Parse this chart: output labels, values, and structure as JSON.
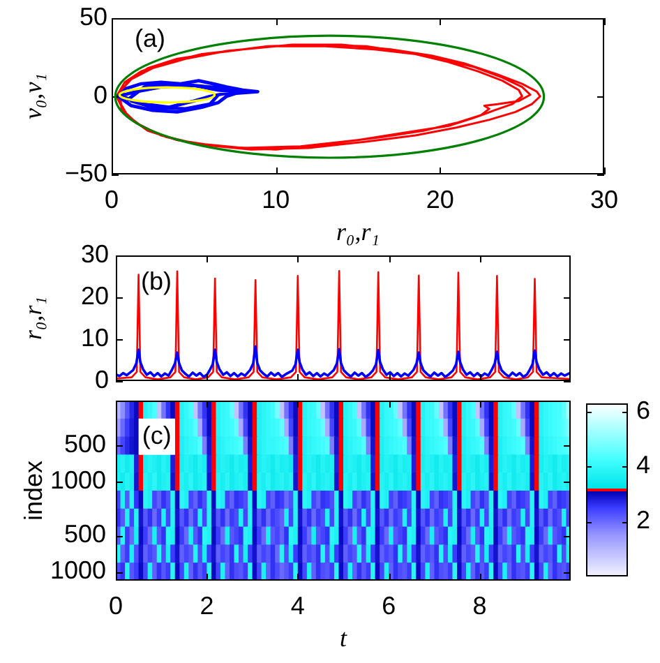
{
  "chart_data": [
    {
      "type": "line",
      "xlabel": "r₀,r₁",
      "ylabel": "v₀,v₁",
      "annotations": [
        "(a)"
      ],
      "xlim": [
        0,
        30
      ],
      "xticks": [
        0,
        10,
        20,
        30
      ],
      "ylim": [
        -50,
        50
      ],
      "yticks": [
        {
          "value": -50,
          "label": "−50"
        },
        0,
        50
      ],
      "series": [
        {
          "color": "#ff0000",
          "x": [
            0.3,
            0.8,
            1.8,
            3.5,
            5.5,
            8,
            11,
            14,
            17,
            19.5,
            21.5,
            23.5,
            25,
            25.9,
            26.1,
            25.6,
            24.6,
            23,
            21,
            18.5,
            15.5,
            12,
            8.5,
            5.5,
            3.3,
            1.8,
            0.8,
            0.3,
            0.5,
            1.2,
            2.5,
            4.5,
            7,
            10,
            13,
            16,
            18.5,
            20.5,
            22.3,
            23.8,
            24.8,
            25,
            24.4,
            23.3,
            22.8,
            22,
            20.5,
            18,
            15,
            11.5,
            8,
            5,
            3,
            1.5,
            0.6,
            0.5,
            0.4,
            1,
            2.2,
            4,
            6.5,
            9.5,
            12.5,
            15.5,
            18,
            20,
            22,
            23.8,
            25,
            25.5,
            24.8,
            23.5,
            22.7,
            23,
            22.5,
            21,
            19,
            16.5,
            13.5,
            10,
            6.5,
            4,
            2.2,
            1,
            0.4
          ],
          "values": [
            0,
            9,
            16,
            22,
            27,
            30,
            33,
            33,
            30,
            26,
            21,
            14,
            8,
            3,
            0,
            -5,
            -10,
            -15,
            -20,
            -25,
            -29,
            -33,
            -34,
            -31,
            -26,
            -19,
            -11,
            0,
            3,
            11,
            18,
            24,
            29,
            32,
            32,
            30,
            27,
            22,
            16,
            10,
            4,
            0,
            -5,
            -9,
            -11,
            -14,
            -19,
            -23,
            -28,
            -32,
            -33,
            -30,
            -25,
            -17,
            -8,
            3,
            -2,
            10,
            18,
            24,
            28,
            32,
            33,
            32,
            28,
            24,
            19,
            12,
            6,
            1,
            -3,
            -5,
            -6,
            -8,
            -12,
            -17,
            -22,
            -26,
            -30,
            -34,
            -32,
            -28,
            -22,
            -13,
            -2
          ]
        },
        {
          "color": "#0000ff",
          "x": [
            0.4,
            0.9,
            1.8,
            3,
            4.2,
            5.3,
            6.2,
            7,
            8,
            8.9,
            7.6,
            7,
            6.5,
            5.5,
            4,
            2.5,
            1.2,
            0.4,
            1.5,
            3,
            5,
            6.5,
            7.5,
            6,
            5,
            3.5,
            2,
            1,
            2,
            4,
            6,
            8,
            6.5,
            6,
            4.5,
            2.5,
            1.2,
            0.6
          ],
          "values": [
            0,
            5,
            8,
            9,
            8,
            10,
            8,
            6,
            4,
            3,
            2,
            0,
            -4,
            -7,
            -10,
            -9,
            -6,
            0,
            3,
            6,
            7,
            4,
            3,
            0,
            -3,
            -7,
            -5,
            -2,
            6,
            8,
            6,
            4,
            1,
            -5,
            -8,
            -7,
            -3,
            1
          ]
        }
      ]
    },
    {
      "type": "line",
      "ylabel": "r₀,r₁",
      "annotations": [
        "(b)"
      ],
      "xlim": [
        0,
        10
      ],
      "xticks": [
        0,
        2,
        4,
        6,
        8
      ],
      "ylim": [
        0,
        30
      ],
      "yticks": [
        0,
        10,
        20,
        30
      ],
      "tick_labels": "y",
      "series": [
        {
          "color": "#ff0000",
          "x": [
            0,
            0.35,
            0.46,
            0.5,
            0.54,
            0.65,
            0.92,
            1.2,
            1.31,
            1.35,
            1.39,
            1.5,
            1.76,
            2.03,
            2.14,
            2.18,
            2.22,
            2.33,
            2.62,
            2.92,
            3.03,
            3.07,
            3.11,
            3.22,
            3.53,
            3.85,
            3.96,
            4,
            4.04,
            4.15,
            4.45,
            4.76,
            4.87,
            4.91,
            4.95,
            5.06,
            5.34,
            5.62,
            5.73,
            5.77,
            5.81,
            5.92,
            6.21,
            6.51,
            6.62,
            6.66,
            6.7,
            6.81,
            7.1,
            7.38,
            7.49,
            7.53,
            7.57,
            7.68,
            7.95,
            8.23,
            8.34,
            8.38,
            8.42,
            8.53,
            8.8,
            9.06,
            9.17,
            9.21,
            9.25,
            9.36,
            9.98
          ],
          "values": [
            0.6,
            0.9,
            2.2,
            25.4,
            2.2,
            0.9,
            0.4,
            0.9,
            2.2,
            26.2,
            2.2,
            0.9,
            0.4,
            0.9,
            2.2,
            24.5,
            2.2,
            0.9,
            0.4,
            0.9,
            2.2,
            24.1,
            2.2,
            0.9,
            0.4,
            0.9,
            2.2,
            25.1,
            2.2,
            0.9,
            0.4,
            0.9,
            2.2,
            26.3,
            2.2,
            0.9,
            0.4,
            0.9,
            2.2,
            26,
            2.2,
            0.9,
            0.4,
            0.9,
            2.2,
            25.2,
            2.2,
            0.9,
            0.4,
            0.9,
            2.2,
            25.9,
            2.2,
            0.9,
            0.4,
            0.9,
            2.2,
            25.1,
            2.2,
            0.9,
            0.4,
            0.9,
            2.2,
            24.4,
            2.2,
            0.9,
            0.5
          ]
        },
        {
          "color": "#0000ff",
          "x": [
            0,
            0.08,
            0.16,
            0.24,
            0.38,
            0.45,
            0.5,
            0.54,
            0.6,
            0.68,
            0.76,
            0.84,
            0.92,
            1,
            1.08,
            1.16,
            1.23,
            1.3,
            1.35,
            1.39,
            1.45,
            1.53,
            1.61,
            1.69,
            1.77,
            1.85,
            1.93,
            2.01,
            2.06,
            2.13,
            2.18,
            2.22,
            2.28,
            2.36,
            2.44,
            2.52,
            2.6,
            2.68,
            2.76,
            2.84,
            2.95,
            3.02,
            3.07,
            3.11,
            3.17,
            3.25,
            3.33,
            3.41,
            3.49,
            3.57,
            3.65,
            3.73,
            3.88,
            3.95,
            4,
            4.04,
            4.1,
            4.18,
            4.26,
            4.34,
            4.42,
            4.5,
            4.58,
            4.66,
            4.79,
            4.86,
            4.91,
            4.95,
            5.01,
            5.09,
            5.17,
            5.25,
            5.33,
            5.41,
            5.49,
            5.57,
            5.65,
            5.72,
            5.77,
            5.81,
            5.87,
            5.95,
            6.03,
            6.11,
            6.19,
            6.27,
            6.35,
            6.43,
            6.54,
            6.61,
            6.66,
            6.7,
            6.76,
            6.84,
            6.92,
            7,
            7.08,
            7.16,
            7.24,
            7.32,
            7.41,
            7.48,
            7.53,
            7.57,
            7.63,
            7.71,
            7.79,
            7.87,
            7.95,
            8.03,
            8.11,
            8.19,
            8.26,
            8.33,
            8.38,
            8.42,
            8.48,
            8.56,
            8.64,
            8.72,
            8.8,
            8.88,
            8.96,
            9.04,
            9.09,
            9.16,
            9.21,
            9.25,
            9.31,
            9.39,
            9.47,
            9.55,
            9.63,
            9.71,
            9.79,
            9.87,
            9.98
          ],
          "values": [
            1.6,
            1.2,
            1.9,
            1.4,
            2.6,
            4.2,
            7.5,
            4.5,
            2.8,
            1.5,
            2.1,
            1.2,
            1.9,
            1.1,
            1.8,
            1.3,
            2.6,
            4.2,
            6.8,
            4.3,
            2.6,
            1.7,
            1.1,
            2,
            1.3,
            1.9,
            1,
            1.6,
            2.5,
            4,
            7.5,
            4.5,
            2.8,
            1.5,
            2.1,
            1.2,
            1.9,
            1.1,
            1.8,
            1.3,
            2.6,
            4.2,
            8.3,
            4.3,
            2.6,
            1.7,
            1.1,
            2,
            1.3,
            1.9,
            1,
            1.6,
            2.5,
            4,
            7.5,
            4.5,
            2.8,
            1.5,
            2.1,
            1.2,
            1.9,
            1.1,
            1.8,
            1.3,
            2.6,
            4.2,
            7.6,
            4.3,
            2.6,
            1.7,
            1.1,
            2,
            1.3,
            1.9,
            1,
            1.6,
            2.5,
            4,
            7.4,
            4.5,
            2.8,
            1.5,
            2.1,
            1.2,
            1.9,
            1.1,
            1.8,
            1.3,
            2.6,
            4.2,
            6.8,
            4.3,
            2.6,
            1.7,
            1.1,
            2,
            1.3,
            1.9,
            1,
            1.6,
            2.5,
            4,
            7,
            4.5,
            2.8,
            1.5,
            2.1,
            1.2,
            1.9,
            1.1,
            1.8,
            1.3,
            2.6,
            4.2,
            7,
            4.3,
            2.6,
            1.7,
            1.1,
            2,
            1.3,
            1.9,
            1,
            1.6,
            2.5,
            4,
            7.3,
            4.5,
            2.8,
            1.5,
            2.1,
            1.2,
            1.9,
            1.1,
            1.8,
            1.3,
            1.9
          ]
        }
      ]
    },
    {
      "type": "heatmap",
      "xlabel": "t",
      "ylabel": "index",
      "annotations": [
        "(c)"
      ],
      "xlim": [
        0,
        10
      ],
      "xticks": [
        0,
        2,
        4,
        6,
        8
      ],
      "y_categories": [
        null,
        null,
        "500",
        null,
        "1000",
        null,
        null,
        "500",
        null,
        "1000"
      ],
      "clim": [
        0,
        6.3
      ],
      "cticks": [
        2,
        4,
        6
      ],
      "x": [
        0.05,
        0.15,
        0.25,
        0.35,
        0.45,
        0.55,
        0.65,
        0.75,
        0.85,
        0.95,
        1.05,
        1.15,
        1.25,
        1.35,
        1.45,
        1.55,
        1.65,
        1.75,
        1.85,
        1.95,
        2.05,
        2.15,
        2.25,
        2.35,
        2.45,
        2.55,
        2.65,
        2.75,
        2.85,
        2.95,
        3.05,
        3.15,
        3.25,
        3.35,
        3.45,
        3.55,
        3.65,
        3.75,
        3.85,
        3.95,
        4.05,
        4.15,
        4.25,
        4.35,
        4.45,
        4.55,
        4.65,
        4.75,
        4.85,
        4.95,
        5.05,
        5.15,
        5.25,
        5.35,
        5.45,
        5.55,
        5.65,
        5.75,
        5.85,
        5.95,
        6.05,
        6.15,
        6.25,
        6.35,
        6.45,
        6.55,
        6.65,
        6.75,
        6.85,
        6.95,
        7.05,
        7.15,
        7.25,
        7.35,
        7.45,
        7.55,
        7.65,
        7.75,
        7.85,
        7.95,
        8.05,
        8.15,
        8.25,
        8.35,
        8.45,
        8.55,
        8.65,
        8.75,
        8.85,
        8.95,
        9.05,
        9.15,
        9.25,
        9.35,
        9.45,
        9.55,
        9.65,
        9.75,
        9.85,
        9.95
      ],
      "cells": [
        [
          1.0,
          1.6,
          2.2,
          2.7,
          3.0,
          3.15,
          3.8,
          4.0,
          4.3,
          0.8,
          1.9,
          2.6,
          3.0,
          3.15,
          3.8,
          4.0,
          4.3,
          0.8,
          1.9,
          2.6,
          3.0,
          3.15,
          3.8,
          4.0,
          4.1,
          4.6,
          0.8,
          1.9,
          2.6,
          3.0,
          3.15,
          3.7,
          3.9,
          4.0,
          4.2,
          4.8,
          0.8,
          1.9,
          2.6,
          3.0,
          3.15,
          3.8,
          4.0,
          4.1,
          4.6,
          0.8,
          1.9,
          2.6,
          3.0,
          3.15,
          3.8,
          4.0,
          4.3,
          0.8,
          1.9,
          2.6,
          3.0,
          3.15,
          3.8,
          4.0,
          4.1,
          4.6,
          0.8,
          1.9,
          2.6,
          3.0,
          3.15,
          3.8,
          4.0,
          4.1,
          4.6,
          0.8,
          1.9,
          2.6,
          3.0,
          3.15,
          3.8,
          4.0,
          4.3,
          0.8,
          1.9,
          2.6,
          3.0,
          3.15,
          3.8,
          4.0,
          4.1,
          4.6,
          0.8,
          1.9,
          2.6,
          3.0,
          3.15,
          3.8,
          4.0,
          4.1,
          4.2,
          4.3,
          4.6,
          5.2
        ],
        [
          1.4,
          2.0,
          2.5,
          2.8,
          3.0,
          null,
          null,
          null,
          null,
          null,
          null,
          null,
          null,
          3.15,
          3.8,
          4.0,
          4.1,
          4.5,
          1.2,
          2.4,
          3.0,
          3.15,
          3.8,
          4.0,
          4.1,
          4.2,
          4.6,
          1.2,
          2.4,
          3.0,
          3.15,
          3.7,
          3.9,
          4.0,
          4.1,
          4.2,
          4.6,
          1.2,
          2.4,
          3.0,
          3.15,
          3.8,
          4.0,
          4.1,
          4.2,
          4.6,
          1.2,
          2.4,
          3.0,
          3.15,
          3.8,
          4.0,
          4.1,
          4.5,
          1.2,
          2.4,
          3.0,
          3.15,
          3.8,
          4.0,
          4.1,
          4.2,
          4.6,
          1.2,
          2.4,
          3.0,
          3.15,
          3.8,
          4.0,
          4.1,
          4.2,
          4.6,
          1.2,
          2.4,
          3.0,
          3.15,
          3.8,
          4.0,
          4.1,
          4.5,
          1.2,
          2.4,
          3.0,
          3.15,
          3.8,
          4.0,
          4.1,
          4.2,
          4.6,
          1.2,
          2.4,
          3.0,
          3.15,
          3.8,
          4.0,
          4.1,
          4.2,
          4.3,
          4.5,
          4.8
        ],
        [
          2.0,
          2.4,
          2.7,
          2.9,
          3.0,
          null,
          null,
          null,
          null,
          null,
          null,
          null,
          null,
          3.15,
          3.7,
          3.9,
          4.0,
          4.1,
          4.4,
          1.8,
          2.9,
          3.15,
          3.7,
          3.9,
          4.0,
          4.1,
          4.2,
          4.4,
          1.8,
          2.9,
          3.15,
          3.7,
          3.9,
          4.0,
          4.0,
          4.1,
          4.2,
          4.4,
          1.8,
          2.9,
          3.15,
          3.7,
          3.9,
          4.0,
          4.1,
          4.2,
          4.4,
          1.8,
          2.9,
          3.15,
          3.7,
          3.9,
          4.0,
          4.1,
          4.4,
          1.8,
          2.9,
          3.15,
          3.7,
          3.9,
          4.0,
          4.1,
          4.2,
          4.4,
          1.8,
          2.9,
          3.15,
          3.7,
          3.9,
          4.0,
          4.1,
          4.2,
          4.4,
          1.8,
          2.9,
          3.15,
          3.7,
          3.9,
          4.0,
          4.1,
          4.4,
          1.8,
          2.9,
          3.15,
          3.7,
          3.9,
          4.0,
          4.1,
          4.2,
          4.4,
          1.8,
          2.9,
          3.15,
          3.7,
          3.9,
          4.0,
          4.1,
          4.2,
          4.3,
          4.4
        ],
        [
          3.6,
          3.8,
          3.5,
          3.7,
          2.8,
          3.15,
          3.6,
          3.8,
          3.7,
          3.5,
          3.8,
          3.6,
          2.8,
          3.15,
          3.6,
          3.8,
          3.7,
          3.5,
          3.8,
          3.6,
          2.8,
          3.15,
          3.6,
          3.8,
          3.7,
          3.5,
          3.8,
          3.6,
          3.7,
          2.8,
          3.15,
          3.6,
          3.8,
          3.7,
          3.5,
          3.8,
          3.6,
          3.7,
          3.5,
          2.8,
          3.15,
          3.6,
          3.8,
          3.7,
          3.5,
          3.8,
          3.6,
          3.7,
          2.8,
          3.15,
          3.6,
          3.8,
          3.7,
          3.5,
          3.8,
          3.6,
          2.8,
          3.15,
          3.6,
          3.8,
          3.7,
          3.5,
          3.8,
          3.6,
          3.7,
          2.8,
          3.15,
          3.6,
          3.8,
          3.7,
          3.5,
          3.8,
          3.6,
          3.7,
          2.8,
          3.15,
          3.6,
          3.8,
          3.7,
          3.5,
          3.8,
          3.6,
          2.8,
          3.15,
          3.6,
          3.8,
          3.7,
          3.5,
          3.8,
          3.6,
          3.7,
          2.8,
          3.15,
          3.6,
          3.8,
          3.7,
          3.5,
          3.8,
          3.6,
          3.7
        ],
        [
          3.7,
          3.5,
          3.8,
          3.6,
          2.9,
          3.15,
          3.8,
          3.6,
          3.9,
          3.5,
          3.7,
          3.8,
          2.9,
          3.15,
          3.8,
          3.6,
          3.9,
          3.5,
          3.7,
          3.8,
          2.9,
          3.15,
          3.8,
          3.6,
          3.9,
          3.5,
          3.7,
          3.8,
          3.6,
          2.9,
          3.15,
          3.8,
          3.6,
          3.9,
          3.5,
          3.7,
          3.8,
          3.6,
          3.8,
          2.9,
          3.15,
          3.8,
          3.6,
          3.9,
          3.5,
          3.7,
          3.8,
          3.6,
          2.9,
          3.15,
          3.8,
          3.6,
          3.9,
          3.5,
          3.7,
          3.8,
          2.9,
          3.15,
          3.8,
          3.6,
          3.9,
          3.5,
          3.7,
          3.8,
          3.6,
          2.9,
          3.15,
          3.8,
          3.6,
          3.9,
          3.5,
          3.7,
          3.8,
          3.6,
          2.9,
          3.15,
          3.8,
          3.6,
          3.9,
          3.5,
          3.7,
          3.8,
          2.9,
          3.15,
          3.8,
          3.6,
          3.9,
          3.5,
          3.7,
          3.8,
          3.6,
          2.9,
          3.15,
          3.8,
          3.6,
          3.9,
          3.5,
          3.7,
          3.8,
          3.6
        ],
        [
          2.4,
          3.7,
          2.2,
          3.8,
          2.6,
          3.0,
          3.9,
          3.7,
          2.4,
          2.1,
          2.6,
          2.3,
          3.8,
          3.0,
          3.9,
          3.7,
          2.4,
          2.1,
          2.6,
          2.3,
          3.8,
          3.0,
          3.9,
          3.7,
          2.4,
          2.1,
          2.6,
          2.5,
          2.3,
          3.8,
          3.0,
          3.9,
          3.7,
          2.4,
          2.1,
          2.6,
          2.5,
          2.0,
          2.3,
          3.8,
          3.0,
          3.9,
          3.7,
          2.4,
          2.1,
          2.6,
          2.5,
          2.3,
          3.8,
          3.0,
          3.9,
          3.7,
          2.4,
          2.1,
          2.6,
          2.3,
          3.8,
          3.0,
          3.9,
          3.7,
          2.4,
          2.1,
          2.6,
          2.5,
          2.3,
          3.8,
          3.0,
          3.9,
          3.7,
          2.4,
          2.1,
          2.6,
          2.5,
          2.3,
          3.8,
          3.0,
          3.9,
          3.7,
          2.4,
          2.1,
          2.6,
          2.3,
          3.8,
          3.0,
          3.9,
          3.7,
          2.4,
          2.1,
          2.6,
          2.5,
          2.3,
          3.8,
          3.0,
          3.9,
          3.7,
          2.4,
          2.1,
          2.6,
          2.5,
          2.3
        ],
        [
          2.6,
          2.2,
          3.7,
          2.4,
          3.8,
          2.9,
          2.2,
          2.6,
          2.0,
          2.5,
          3.7,
          2.4,
          3.8,
          2.9,
          2.2,
          2.6,
          2.0,
          2.5,
          3.7,
          2.4,
          3.8,
          2.9,
          2.2,
          2.6,
          2.0,
          2.5,
          2.3,
          3.7,
          2.4,
          3.8,
          2.9,
          2.2,
          2.6,
          2.0,
          2.5,
          2.3,
          2.1,
          3.7,
          2.4,
          3.8,
          2.9,
          2.2,
          2.6,
          2.0,
          2.5,
          2.3,
          3.7,
          2.4,
          3.8,
          2.9,
          2.2,
          2.6,
          2.0,
          2.5,
          3.7,
          2.4,
          3.8,
          2.9,
          2.2,
          2.6,
          2.0,
          2.5,
          2.3,
          3.7,
          2.4,
          3.8,
          2.9,
          2.2,
          2.6,
          2.0,
          2.5,
          2.3,
          3.7,
          2.4,
          3.8,
          2.9,
          2.2,
          2.6,
          2.0,
          2.5,
          3.7,
          2.4,
          3.8,
          2.9,
          2.2,
          2.6,
          2.0,
          2.5,
          2.3,
          3.7,
          2.4,
          3.8,
          2.9,
          2.2,
          2.6,
          2.0,
          2.5,
          2.3,
          3.7,
          2.4
        ],
        [
          2.2,
          3.9,
          2.5,
          2.0,
          3.6,
          3.0,
          2.5,
          2.0,
          3.6,
          2.2,
          2.6,
          3.9,
          3.7,
          3.0,
          2.5,
          2.0,
          3.6,
          2.2,
          2.6,
          3.9,
          3.7,
          3.0,
          2.5,
          2.0,
          3.6,
          2.2,
          2.4,
          2.6,
          3.9,
          3.7,
          3.0,
          2.5,
          2.0,
          3.6,
          2.2,
          2.4,
          2.1,
          2.6,
          3.9,
          3.7,
          3.0,
          2.5,
          2.0,
          3.6,
          2.2,
          2.4,
          2.6,
          3.9,
          3.7,
          3.0,
          2.5,
          2.0,
          3.6,
          2.2,
          2.6,
          3.9,
          3.7,
          3.0,
          2.5,
          2.0,
          3.6,
          2.2,
          2.4,
          2.6,
          3.9,
          3.7,
          3.0,
          2.5,
          2.0,
          3.6,
          2.2,
          2.4,
          2.6,
          3.9,
          3.7,
          3.0,
          2.5,
          2.0,
          3.6,
          2.2,
          2.6,
          3.9,
          3.7,
          3.0,
          2.5,
          2.0,
          3.6,
          2.2,
          2.4,
          2.6,
          3.9,
          3.7,
          3.0,
          2.5,
          2.0,
          3.6,
          2.2,
          2.4,
          2.6,
          3.9
        ],
        [
          3.8,
          2.1,
          2.5,
          3.6,
          2.3,
          2.9,
          2.1,
          2.4,
          2.2,
          3.8,
          2.3,
          3.6,
          2.5,
          2.9,
          2.1,
          2.4,
          2.2,
          3.8,
          2.3,
          3.6,
          2.5,
          2.9,
          2.1,
          2.4,
          2.2,
          2.6,
          3.8,
          2.3,
          3.6,
          2.5,
          2.9,
          2.1,
          2.4,
          2.2,
          2.6,
          2.0,
          3.8,
          2.3,
          3.6,
          2.5,
          2.9,
          2.1,
          2.4,
          2.2,
          2.6,
          3.8,
          2.3,
          3.6,
          2.5,
          2.9,
          2.1,
          2.4,
          2.2,
          3.8,
          2.3,
          3.6,
          2.5,
          2.9,
          2.1,
          2.4,
          2.2,
          2.6,
          3.8,
          2.3,
          3.6,
          2.5,
          2.9,
          2.1,
          2.4,
          2.2,
          2.6,
          3.8,
          2.3,
          3.6,
          2.5,
          2.9,
          2.1,
          2.4,
          2.2,
          3.8,
          2.3,
          3.6,
          2.5,
          2.9,
          2.1,
          2.4,
          2.2,
          2.6,
          3.8,
          2.3,
          3.6,
          2.5,
          2.9,
          2.1,
          2.4,
          2.2,
          2.6,
          3.8,
          2.3,
          3.6
        ],
        [
          2.3,
          2.6,
          3.8,
          2.2,
          2.5,
          3.0,
          2.4,
          3.7,
          2.1,
          2.6,
          2.2,
          2.5,
          3.9,
          3.0,
          2.4,
          3.7,
          2.1,
          2.6,
          2.2,
          2.5,
          3.9,
          3.0,
          2.4,
          3.7,
          2.1,
          2.6,
          2.3,
          2.2,
          2.5,
          3.9,
          3.0,
          2.4,
          3.7,
          2.1,
          2.6,
          2.3,
          2.0,
          2.2,
          2.5,
          3.9,
          3.0,
          2.4,
          3.7,
          2.1,
          2.6,
          2.3,
          2.2,
          2.5,
          3.9,
          3.0,
          2.4,
          3.7,
          2.1,
          2.6,
          2.2,
          2.5,
          3.9,
          3.0,
          2.4,
          3.7,
          2.1,
          2.6,
          2.3,
          2.2,
          2.5,
          3.9,
          3.0,
          2.4,
          3.7,
          2.1,
          2.6,
          2.3,
          2.2,
          2.5,
          3.9,
          3.0,
          2.4,
          3.7,
          2.1,
          2.6,
          2.2,
          2.5,
          3.9,
          3.0,
          2.4,
          3.7,
          2.1,
          2.6,
          2.3,
          2.2,
          2.5,
          3.9,
          3.0,
          2.4,
          3.7,
          2.1,
          2.6,
          2.3,
          2.2,
          2.5
        ]
      ]
    }
  ]
}
